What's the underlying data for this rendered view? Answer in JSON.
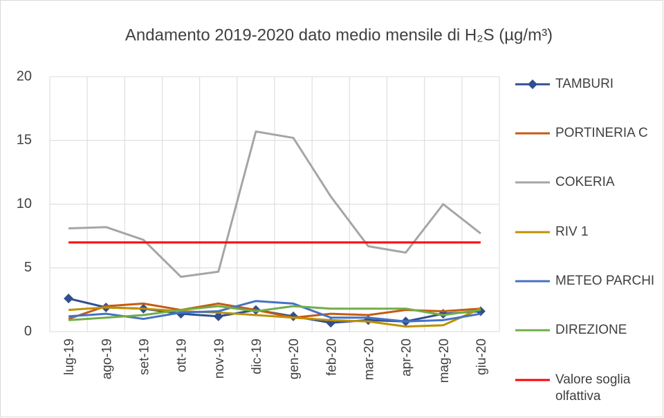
{
  "chart_data": {
    "type": "line",
    "title": "Andamento 2019-2020 dato medio mensile di H₂S (µg/m³)",
    "categories": [
      "lug-19",
      "ago-19",
      "set-19",
      "ott-19",
      "nov-19",
      "dic-19",
      "gen-20",
      "feb-20",
      "mar-20",
      "apr-20",
      "mag-20",
      "giu-20"
    ],
    "series": [
      {
        "name": "TAMBURI",
        "color": "#2f4f8f",
        "marker": "diamond",
        "values": [
          2.6,
          1.9,
          1.8,
          1.4,
          1.2,
          1.7,
          1.2,
          0.7,
          0.9,
          0.8,
          1.4,
          1.6
        ]
      },
      {
        "name": "PORTINERIA C",
        "color": "#c55a11",
        "values": [
          1.0,
          2.0,
          2.2,
          1.7,
          2.2,
          1.7,
          1.1,
          1.4,
          1.3,
          1.7,
          1.6,
          1.8
        ]
      },
      {
        "name": "COKERIA",
        "color": "#a5a5a5",
        "values": [
          8.1,
          8.2,
          7.2,
          4.3,
          4.7,
          15.7,
          15.2,
          10.6,
          6.7,
          6.2,
          10.0,
          7.7
        ]
      },
      {
        "name": "RIV 1",
        "color": "#bf9000",
        "values": [
          1.7,
          1.9,
          1.8,
          1.6,
          1.5,
          1.3,
          1.1,
          0.9,
          0.8,
          0.4,
          0.5,
          1.8
        ]
      },
      {
        "name": "METEO PARCHI",
        "color": "#4472c4",
        "values": [
          1.2,
          1.4,
          1.0,
          1.5,
          1.6,
          2.4,
          2.2,
          1.1,
          1.1,
          0.8,
          0.9,
          1.4
        ]
      },
      {
        "name": "DIREZIONE",
        "color": "#70ad47",
        "values": [
          0.9,
          1.1,
          1.3,
          1.7,
          2.0,
          1.6,
          2.0,
          1.8,
          1.8,
          1.8,
          1.3,
          1.7
        ]
      },
      {
        "name": "Valore soglia olfattiva",
        "color": "#ff0000",
        "values": [
          7,
          7,
          7,
          7,
          7,
          7,
          7,
          7,
          7,
          7,
          7,
          7
        ]
      }
    ],
    "ylim": [
      0,
      20
    ],
    "yticks": [
      0,
      5,
      10,
      15,
      20
    ],
    "grid": true,
    "legend": "right"
  }
}
